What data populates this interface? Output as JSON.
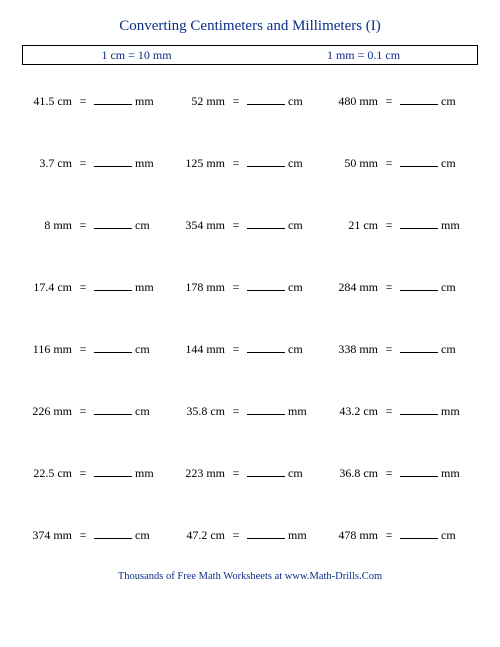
{
  "title": "Converting Centimeters and Millimeters (I)",
  "rule_left": "1 cm = 10 mm",
  "rule_right": "1 mm = 0.1 cm",
  "footer": "Thousands of Free Math Worksheets at www.Math-Drills.Com",
  "colors": {
    "heading": "#0a2f8a",
    "text": "#000000",
    "border": "#000000",
    "background": "#ffffff"
  },
  "problems": [
    [
      {
        "given_value": "41.5",
        "given_unit": "cm",
        "answer_unit": "mm"
      },
      {
        "given_value": "52",
        "given_unit": "mm",
        "answer_unit": "cm"
      },
      {
        "given_value": "480",
        "given_unit": "mm",
        "answer_unit": "cm"
      }
    ],
    [
      {
        "given_value": "3.7",
        "given_unit": "cm",
        "answer_unit": "mm"
      },
      {
        "given_value": "125",
        "given_unit": "mm",
        "answer_unit": "cm"
      },
      {
        "given_value": "50",
        "given_unit": "mm",
        "answer_unit": "cm"
      }
    ],
    [
      {
        "given_value": "8",
        "given_unit": "mm",
        "answer_unit": "cm"
      },
      {
        "given_value": "354",
        "given_unit": "mm",
        "answer_unit": "cm"
      },
      {
        "given_value": "21",
        "given_unit": "cm",
        "answer_unit": "mm"
      }
    ],
    [
      {
        "given_value": "17.4",
        "given_unit": "cm",
        "answer_unit": "mm"
      },
      {
        "given_value": "178",
        "given_unit": "mm",
        "answer_unit": "cm"
      },
      {
        "given_value": "284",
        "given_unit": "mm",
        "answer_unit": "cm"
      }
    ],
    [
      {
        "given_value": "116",
        "given_unit": "mm",
        "answer_unit": "cm"
      },
      {
        "given_value": "144",
        "given_unit": "mm",
        "answer_unit": "cm"
      },
      {
        "given_value": "338",
        "given_unit": "mm",
        "answer_unit": "cm"
      }
    ],
    [
      {
        "given_value": "226",
        "given_unit": "mm",
        "answer_unit": "cm"
      },
      {
        "given_value": "35.8",
        "given_unit": "cm",
        "answer_unit": "mm"
      },
      {
        "given_value": "43.2",
        "given_unit": "cm",
        "answer_unit": "mm"
      }
    ],
    [
      {
        "given_value": "22.5",
        "given_unit": "cm",
        "answer_unit": "mm"
      },
      {
        "given_value": "223",
        "given_unit": "mm",
        "answer_unit": "cm"
      },
      {
        "given_value": "36.8",
        "given_unit": "cm",
        "answer_unit": "mm"
      }
    ],
    [
      {
        "given_value": "374",
        "given_unit": "mm",
        "answer_unit": "cm"
      },
      {
        "given_value": "47.2",
        "given_unit": "cm",
        "answer_unit": "mm"
      },
      {
        "given_value": "478",
        "given_unit": "mm",
        "answer_unit": "cm"
      }
    ]
  ]
}
